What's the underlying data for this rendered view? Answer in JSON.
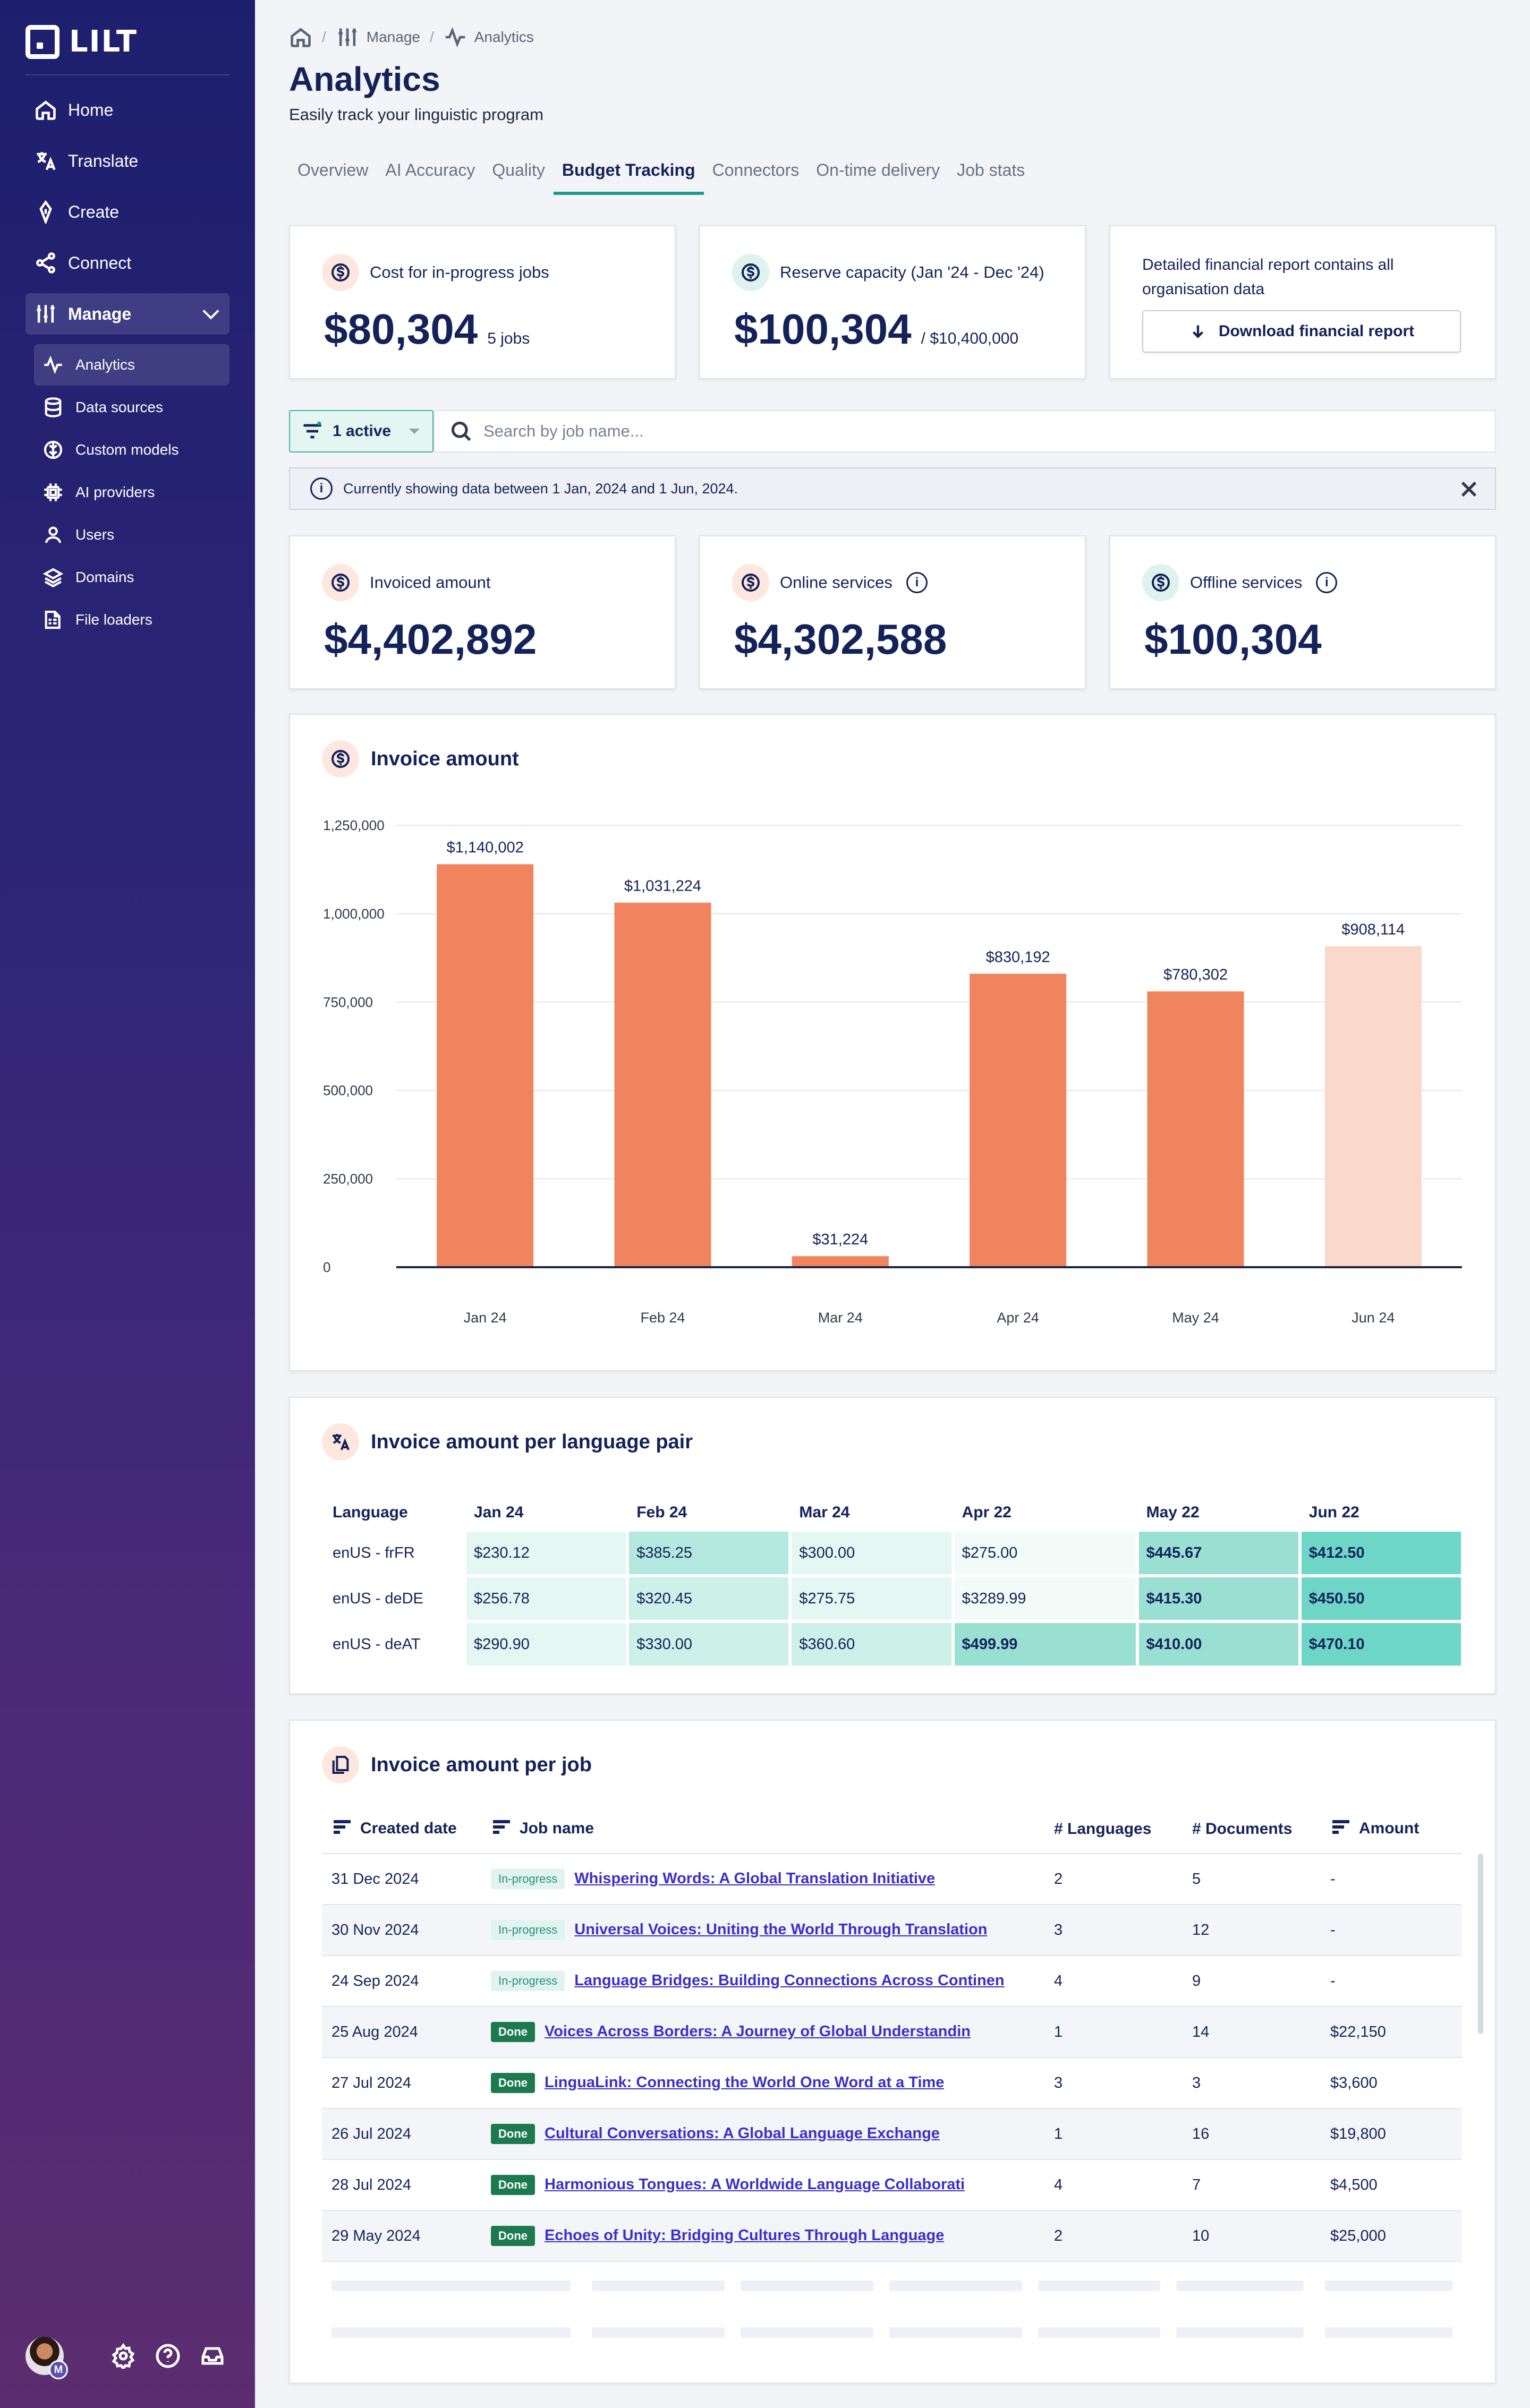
{
  "brand": {
    "name": "LILT"
  },
  "sidebar": {
    "nav": [
      {
        "label": "Home",
        "icon": "home-icon"
      },
      {
        "label": "Translate",
        "icon": "translate-icon"
      },
      {
        "label": "Create",
        "icon": "pen-icon"
      },
      {
        "label": "Connect",
        "icon": "share-icon"
      }
    ],
    "manage_label": "Manage",
    "sub": [
      {
        "label": "Analytics",
        "icon": "activity-icon"
      },
      {
        "label": "Data sources",
        "icon": "database-icon"
      },
      {
        "label": "Custom models",
        "icon": "model-icon"
      },
      {
        "label": "AI providers",
        "icon": "chip-icon"
      },
      {
        "label": "Users",
        "icon": "user-icon"
      },
      {
        "label": "Domains",
        "icon": "layers-icon"
      },
      {
        "label": "File loaders",
        "icon": "file-loader-icon"
      }
    ],
    "avatar_badge": "M"
  },
  "breadcrumb": {
    "manage": "Manage",
    "analytics": "Analytics"
  },
  "header": {
    "title": "Analytics",
    "subtitle": "Easily track your linguistic program"
  },
  "tabs": [
    "Overview",
    "AI Accuracy",
    "Quality",
    "Budget Tracking",
    "Connectors",
    "On-time delivery",
    "Job stats"
  ],
  "summary": {
    "in_progress": {
      "label": "Cost for in-progress jobs",
      "value": "$80,304",
      "sub": "5 jobs"
    },
    "reserve": {
      "label": "Reserve capacity (Jan '24 - Dec '24)",
      "value": "$100,304",
      "sub": "/ $10,400,000"
    },
    "report": {
      "text": "Detailed financial report contains all organisation data",
      "button": "Download financial report"
    }
  },
  "filter": {
    "label": "1 active",
    "search_placeholder": "Search by job name...",
    "notice": "Currently showing data between 1 Jan, 2024 and 1 Jun, 2024."
  },
  "kpis": {
    "invoiced": {
      "label": "Invoiced amount",
      "value": "$4,402,892"
    },
    "online": {
      "label": "Online services",
      "value": "$4,302,588"
    },
    "offline": {
      "label": "Offline services",
      "value": "$100,304"
    }
  },
  "chart_title": "Invoice amount",
  "chart_data": {
    "type": "bar",
    "title": "Invoice amount",
    "categories": [
      "Jan 24",
      "Feb 24",
      "Mar 24",
      "Apr 24",
      "May 24",
      "Jun 24"
    ],
    "values": [
      1140002,
      1031224,
      31224,
      830192,
      780302,
      908114
    ],
    "data_labels": [
      "$1,140,002",
      "$1,031,224",
      "$31,224",
      "$830,192",
      "$780,302",
      "$908,114"
    ],
    "projected": [
      false,
      false,
      false,
      false,
      false,
      true
    ],
    "yticks": [
      "0",
      "250,000",
      "500,000",
      "750,000",
      "1,000,000",
      "1,250,000"
    ],
    "ylim": [
      0,
      1250000
    ],
    "colors": {
      "actual": "#f0845e",
      "projected": "#fad8cc"
    }
  },
  "lang_table": {
    "title": "Invoice amount per language pair",
    "headers": [
      "Language",
      "Jan 24",
      "Feb 24",
      "Mar 24",
      "Apr 22",
      "May 22",
      "Jun 22"
    ],
    "rows": [
      {
        "lang": "enUS - frFR",
        "cells": [
          "$230.12",
          "$385.25",
          "$300.00",
          "$275.00",
          "$445.67",
          "$412.50"
        ]
      },
      {
        "lang": "enUS - deDE",
        "cells": [
          "$256.78",
          "$320.45",
          "$275.75",
          "$3289.99",
          "$415.30",
          "$450.50"
        ]
      },
      {
        "lang": "enUS - deAT",
        "cells": [
          "$290.90",
          "$330.00",
          "$360.60",
          "$499.99",
          "$410.00",
          "$470.10"
        ]
      }
    ],
    "levels": [
      [
        1,
        3,
        1,
        0,
        4,
        5
      ],
      [
        1,
        2,
        1,
        0,
        4,
        5
      ],
      [
        1,
        2,
        2,
        4,
        4,
        5
      ]
    ]
  },
  "job_table": {
    "title": "Invoice amount per job",
    "headers": [
      "Created date",
      "Job name",
      "# Languages",
      "# Documents",
      "Amount"
    ],
    "rows": [
      {
        "date": "31 Dec 2024",
        "status": "In-progress",
        "name": "Whispering Words: A Global Translation Initiative",
        "langs": "2",
        "docs": "5",
        "amount": "-"
      },
      {
        "date": "30 Nov 2024",
        "status": "In-progress",
        "name": "Universal Voices: Uniting the World Through Translation",
        "langs": "3",
        "docs": "12",
        "amount": "-"
      },
      {
        "date": "24 Sep 2024",
        "status": "In-progress",
        "name": "Language Bridges: Building Connections Across Continen",
        "langs": "4",
        "docs": "9",
        "amount": "-"
      },
      {
        "date": "25 Aug 2024",
        "status": "Done",
        "name": "Voices Across Borders: A Journey of Global Understandin",
        "langs": "1",
        "docs": "14",
        "amount": "$22,150"
      },
      {
        "date": "27 Jul 2024",
        "status": "Done",
        "name": "LinguaLink: Connecting the World One Word at a Time",
        "langs": "3",
        "docs": "3",
        "amount": "$3,600"
      },
      {
        "date": "26 Jul 2024",
        "status": "Done",
        "name": "Cultural Conversations: A Global Language Exchange",
        "langs": "1",
        "docs": "16",
        "amount": "$19,800"
      },
      {
        "date": "28 Jul 2024",
        "status": "Done",
        "name": "Harmonious Tongues: A Worldwide Language Collaborati",
        "langs": "4",
        "docs": "7",
        "amount": "$4,500"
      },
      {
        "date": "29 May 2024",
        "status": "Done",
        "name": "Echoes of Unity: Bridging Cultures Through Language",
        "langs": "2",
        "docs": "10",
        "amount": "$25,000"
      }
    ]
  }
}
